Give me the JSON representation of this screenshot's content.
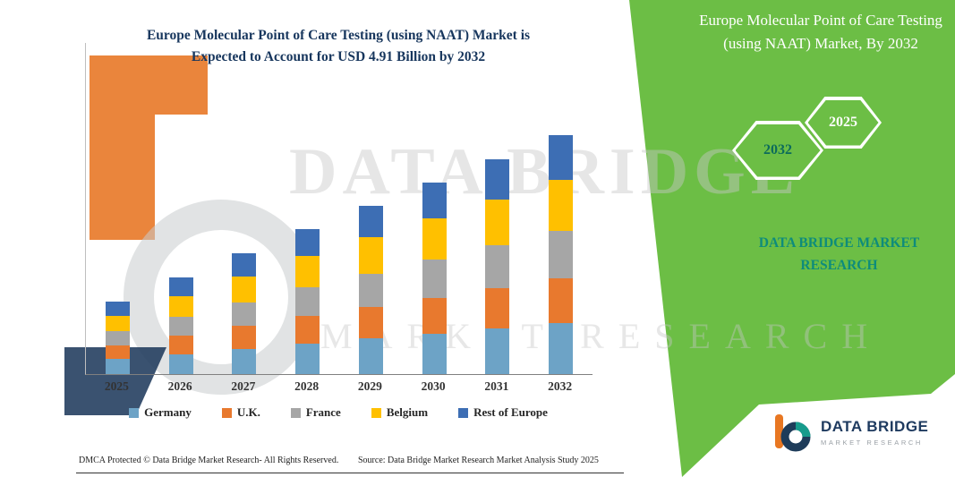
{
  "watermark": {
    "line1": "DATA BRIDGE",
    "line2": "MARKET RESEARCH"
  },
  "chart": {
    "title_line1": "Europe Molecular Point of Care Testing (using NAAT) Market is",
    "title_line2": "Expected to Account for USD 4.91 Billion by 2032"
  },
  "chart_data": {
    "type": "bar",
    "stacked": true,
    "title": "Europe Molecular Point of Care Testing (using NAAT) Market is Expected to Account for USD 4.91 Billion by 2032",
    "value_unit": "USD Billion",
    "categories": [
      "2025",
      "2026",
      "2027",
      "2028",
      "2029",
      "2030",
      "2031",
      "2032"
    ],
    "series": [
      {
        "name": "Germany",
        "color": "#6DA3C6",
        "values": [
          0.31,
          0.41,
          0.52,
          0.63,
          0.73,
          0.83,
          0.93,
          1.04
        ]
      },
      {
        "name": "U.K.",
        "color": "#E8792E",
        "values": [
          0.28,
          0.38,
          0.47,
          0.56,
          0.65,
          0.74,
          0.83,
          0.92
        ]
      },
      {
        "name": "France",
        "color": "#A6A6A6",
        "values": [
          0.29,
          0.39,
          0.49,
          0.59,
          0.69,
          0.79,
          0.88,
          0.98
        ]
      },
      {
        "name": "Belgium",
        "color": "#FFC000",
        "values": [
          0.32,
          0.42,
          0.53,
          0.64,
          0.74,
          0.85,
          0.95,
          1.06
        ]
      },
      {
        "name": "Rest of Europe",
        "color": "#3D6EB4",
        "values": [
          0.29,
          0.39,
          0.47,
          0.56,
          0.65,
          0.73,
          0.82,
          0.91
        ]
      }
    ],
    "totals": [
      1.49,
      1.99,
      2.48,
      2.98,
      3.46,
      3.94,
      4.41,
      4.91
    ],
    "xlabel": "",
    "ylabel": "",
    "y_axis_labels_visible": false,
    "grid": false,
    "legend_position": "bottom"
  },
  "side_panel": {
    "title": "Europe Molecular Point of Care Testing (using NAAT) Market, By 2032",
    "hexagons": [
      {
        "label": "2032"
      },
      {
        "label": "2025"
      }
    ],
    "brand_line1": "DATA BRIDGE MARKET",
    "brand_line2": "RESEARCH",
    "background_color": "#6CBE45",
    "brand_color": "#0E8C7B",
    "title_color": "#17365D"
  },
  "footer": {
    "dmca": "DMCA Protected © Data Bridge Market Research-  All Rights Reserved.",
    "source": "Source: Data Bridge Market Research  Market Analysis Study 2025"
  },
  "logo": {
    "name": "DATA BRIDGE",
    "subtitle": "MARKET RESEARCH"
  }
}
